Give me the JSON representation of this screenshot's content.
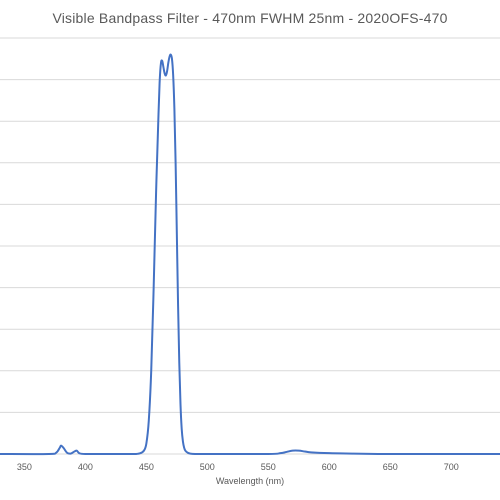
{
  "chart_data": {
    "type": "line",
    "title": "Visible Bandpass Filter - 470nm FWHM 25nm - 2020OFS-470",
    "xlabel": "Wavelength (nm)",
    "ylabel": "",
    "xlim": [
      330,
      740
    ],
    "ylim": [
      0,
      100
    ],
    "x_ticks": [
      350,
      400,
      450,
      500,
      550,
      600,
      650,
      700
    ],
    "y_gridlines": [
      0,
      10,
      20,
      30,
      40,
      50,
      60,
      70,
      80,
      90,
      100
    ],
    "grid": true,
    "legend": "none",
    "color": "#4472c4",
    "series": [
      {
        "x": [
          330,
          370,
          376,
          379,
          380,
          382,
          385,
          388,
          391,
          393,
          395,
          400,
          420,
          440,
          445,
          448,
          450,
          452,
          454,
          456,
          458,
          460,
          461,
          462,
          463,
          464,
          465,
          466,
          467,
          468,
          469,
          470,
          471,
          472,
          473,
          474,
          475,
          476,
          477,
          478,
          479,
          480,
          481,
          482,
          484,
          486,
          490,
          495,
          500,
          550,
          560,
          565,
          570,
          575,
          580,
          585,
          600,
          620,
          640,
          660,
          680,
          700,
          720,
          740
        ],
        "y": [
          0,
          0,
          0.3,
          1.5,
          2.0,
          1.5,
          0.3,
          0.1,
          0.6,
          0.8,
          0.2,
          0,
          0,
          0,
          0.2,
          0.8,
          2.5,
          8,
          20,
          40,
          63,
          82,
          90,
          94,
          94.5,
          93,
          91.5,
          91,
          92,
          94,
          95.5,
          96,
          95,
          91,
          83,
          70,
          53,
          36,
          22,
          12,
          6,
          3,
          1.5,
          0.8,
          0.3,
          0.1,
          0,
          0,
          0,
          0,
          0.2,
          0.5,
          0.8,
          0.8,
          0.6,
          0.4,
          0.2,
          0.1,
          0,
          0,
          0,
          0,
          0,
          0
        ]
      }
    ]
  }
}
